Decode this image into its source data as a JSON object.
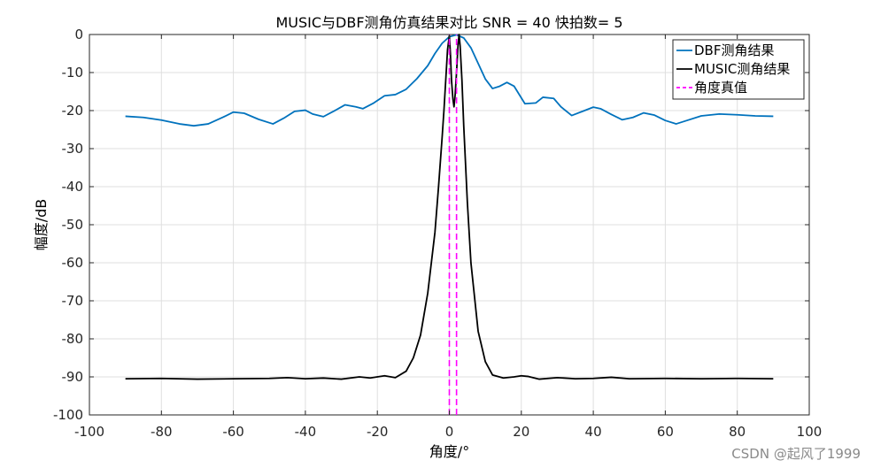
{
  "chart_data": {
    "type": "line",
    "title": "MUSIC与DBF测角仿真结果对比  SNR = 40  快拍数= 5",
    "xlabel": "角度/°",
    "ylabel": "幅度/dB",
    "xlim": [
      -100,
      100
    ],
    "ylim": [
      -100,
      0
    ],
    "xticks": [
      -100,
      -80,
      -60,
      -40,
      -20,
      0,
      20,
      40,
      60,
      80,
      100
    ],
    "yticks": [
      0,
      -10,
      -20,
      -30,
      -40,
      -50,
      -60,
      -70,
      -80,
      -90,
      -100
    ],
    "grid": true,
    "legend_position": "top-right",
    "series": [
      {
        "name": "DBF测角结果",
        "color": "#0072BD",
        "style": "solid",
        "x": [
          -90,
          -85,
          -80,
          -75,
          -71,
          -67,
          -63,
          -60,
          -57,
          -53,
          -49,
          -46,
          -43,
          -40,
          -38,
          -35,
          -32,
          -29,
          -26,
          -24,
          -21,
          -18,
          -15,
          -12,
          -9,
          -6,
          -4,
          -2,
          0,
          2,
          4,
          6,
          8,
          10,
          12,
          14,
          16,
          18,
          21,
          24,
          26,
          29,
          31,
          34,
          37,
          40,
          42,
          45,
          48,
          51,
          54,
          57,
          60,
          63,
          66,
          70,
          75,
          80,
          85,
          90
        ],
        "y": [
          -21.5,
          -21.8,
          -22.5,
          -23.5,
          -24.0,
          -23.5,
          -21.8,
          -20.4,
          -20.7,
          -22.3,
          -23.5,
          -22.0,
          -20.2,
          -19.9,
          -20.9,
          -21.6,
          -20.1,
          -18.5,
          -19.0,
          -19.5,
          -18.0,
          -16.1,
          -15.8,
          -14.4,
          -11.6,
          -8.2,
          -5.0,
          -2.3,
          -0.6,
          -0.1,
          -0.9,
          -3.5,
          -7.6,
          -11.7,
          -14.2,
          -13.6,
          -12.6,
          -13.6,
          -18.2,
          -18.0,
          -16.5,
          -16.8,
          -19.0,
          -21.3,
          -20.2,
          -19.1,
          -19.5,
          -21.0,
          -22.4,
          -21.8,
          -20.6,
          -21.2,
          -22.6,
          -23.5,
          -22.6,
          -21.4,
          -20.9,
          -21.1,
          -21.4,
          -21.5
        ]
      },
      {
        "name": "MUSIC测角结果",
        "color": "#000000",
        "style": "solid",
        "x": [
          -90,
          -80,
          -70,
          -60,
          -50,
          -45,
          -40,
          -35,
          -30,
          -25,
          -22,
          -18,
          -15,
          -12,
          -10,
          -8,
          -6,
          -4,
          -3,
          -2,
          -1.5,
          -1,
          -0.5,
          0,
          0.3,
          0.6,
          1,
          1.3,
          1.6,
          2,
          2.4,
          2.7,
          3,
          3.5,
          4,
          5,
          6,
          8,
          10,
          12,
          15,
          18,
          20,
          22,
          25,
          30,
          35,
          40,
          45,
          50,
          60,
          70,
          80,
          90
        ],
        "y": [
          -90.5,
          -90.4,
          -90.6,
          -90.5,
          -90.4,
          -90.2,
          -90.5,
          -90.3,
          -90.6,
          -90.0,
          -90.3,
          -89.7,
          -90.2,
          -88.5,
          -85.0,
          -79.0,
          -68.0,
          -52.0,
          -40.0,
          -27.0,
          -20.0,
          -12.0,
          -4.0,
          -0.3,
          -5.0,
          -12.0,
          -17.0,
          -19.0,
          -16.0,
          -10.0,
          -3.0,
          0.0,
          -3.0,
          -12.0,
          -24.0,
          -44.0,
          -60.0,
          -78.0,
          -86.0,
          -89.5,
          -90.3,
          -90.0,
          -89.7,
          -89.9,
          -90.6,
          -90.2,
          -90.5,
          -90.4,
          -90.1,
          -90.5,
          -90.4,
          -90.5,
          -90.4,
          -90.5
        ]
      },
      {
        "name": "角度真值",
        "color": "#FF00FF",
        "style": "dashed",
        "vlines": [
          0,
          2
        ],
        "y_range": [
          -100,
          0
        ]
      }
    ]
  },
  "watermark": "CSDN @起风了1999"
}
